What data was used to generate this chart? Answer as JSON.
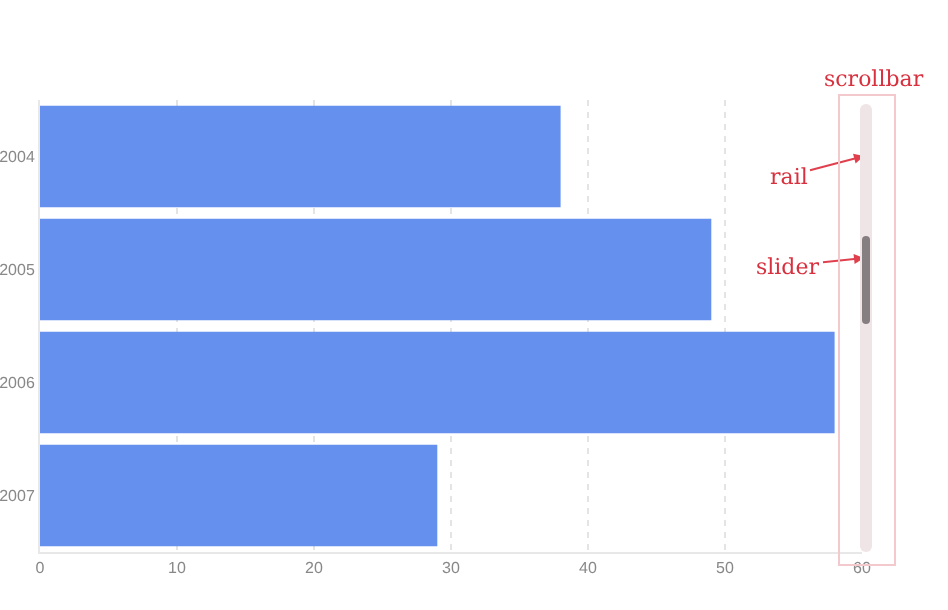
{
  "chart_data": {
    "type": "bar",
    "orientation": "horizontal",
    "categories": [
      "2004",
      "2005",
      "2006",
      "2007"
    ],
    "values": [
      38,
      49,
      58,
      29
    ],
    "color": "#6690ee",
    "xlim": [
      0,
      60
    ],
    "xticks": [
      0,
      10,
      20,
      30,
      40,
      50,
      60
    ],
    "grid": "x",
    "annotations": [
      "scrollbar",
      "rail",
      "slider"
    ]
  }
}
